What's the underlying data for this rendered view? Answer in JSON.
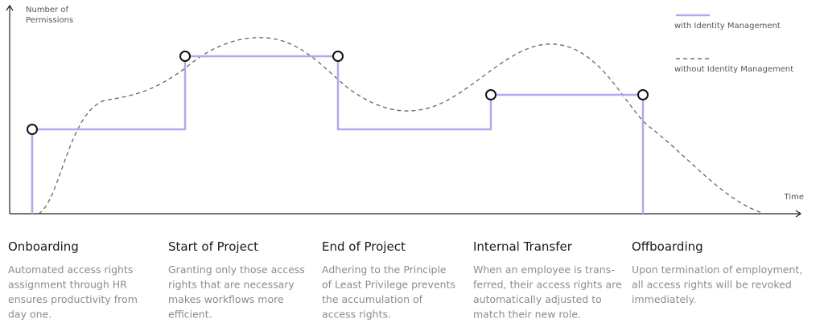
{
  "axis": {
    "y_label": [
      "Number of",
      "Permissions"
    ],
    "x_label": "Time"
  },
  "legend": [
    "with Identity Management",
    "without Identity Management"
  ],
  "stages": [
    {
      "title": "Onboarding",
      "lines": [
        "Automated access rights",
        "assignment through HR",
        "ensures productivity from",
        "day one."
      ]
    },
    {
      "title": "Start of Project",
      "lines": [
        "Granting only those access",
        "rights that are necessary",
        "makes workflows more",
        "efficient."
      ]
    },
    {
      "title": "End of Project",
      "lines": [
        "Adhering to the Principle",
        "of Least Privilege prevents",
        "the accumulation of",
        "access rights."
      ]
    },
    {
      "title": "Internal Transfer",
      "lines": [
        "When an employee is trans-",
        "ferred, their access rights are",
        "automatically adjusted to",
        "match their new role."
      ]
    },
    {
      "title": "Offboarding",
      "lines": [
        "Upon termination of employment,",
        "all access rights will be revoked",
        "immediately."
      ]
    }
  ]
}
